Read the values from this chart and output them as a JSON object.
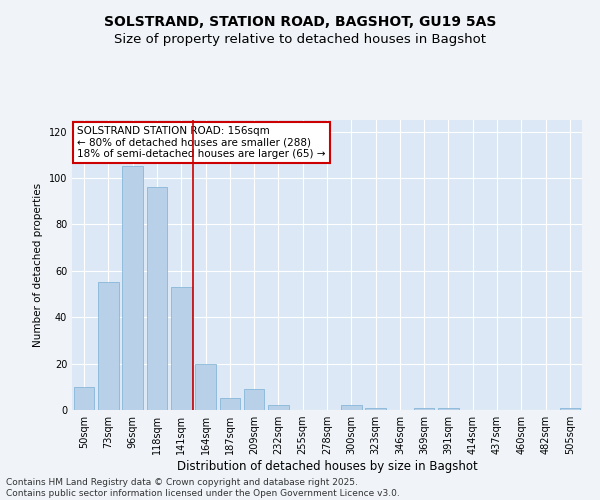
{
  "title1": "SOLSTRAND, STATION ROAD, BAGSHOT, GU19 5AS",
  "title2": "Size of property relative to detached houses in Bagshot",
  "xlabel": "Distribution of detached houses by size in Bagshot",
  "ylabel": "Number of detached properties",
  "categories": [
    "50sqm",
    "73sqm",
    "96sqm",
    "118sqm",
    "141sqm",
    "164sqm",
    "187sqm",
    "209sqm",
    "232sqm",
    "255sqm",
    "278sqm",
    "300sqm",
    "323sqm",
    "346sqm",
    "369sqm",
    "391sqm",
    "414sqm",
    "437sqm",
    "460sqm",
    "482sqm",
    "505sqm"
  ],
  "values": [
    10,
    55,
    105,
    96,
    53,
    20,
    5,
    9,
    2,
    0,
    0,
    2,
    1,
    0,
    1,
    1,
    0,
    0,
    0,
    0,
    1
  ],
  "bar_color": "#b8d0e8",
  "bar_edge_color": "#7aafd4",
  "vline_x_index": 4.5,
  "vline_color": "#cc0000",
  "annotation_text": "SOLSTRAND STATION ROAD: 156sqm\n← 80% of detached houses are smaller (288)\n18% of semi-detached houses are larger (65) →",
  "annotation_box_facecolor": "#ffffff",
  "annotation_box_edgecolor": "#cc0000",
  "ylim": [
    0,
    125
  ],
  "yticks": [
    0,
    20,
    40,
    60,
    80,
    100,
    120
  ],
  "axes_bg_color": "#dce8f5",
  "fig_bg_color": "#f0f4f8",
  "footer_text": "Contains HM Land Registry data © Crown copyright and database right 2025.\nContains public sector information licensed under the Open Government Licence v3.0.",
  "title1_fontsize": 10,
  "title2_fontsize": 9.5,
  "xlabel_fontsize": 8.5,
  "ylabel_fontsize": 7.5,
  "tick_fontsize": 7,
  "annotation_fontsize": 7.5,
  "footer_fontsize": 6.5
}
